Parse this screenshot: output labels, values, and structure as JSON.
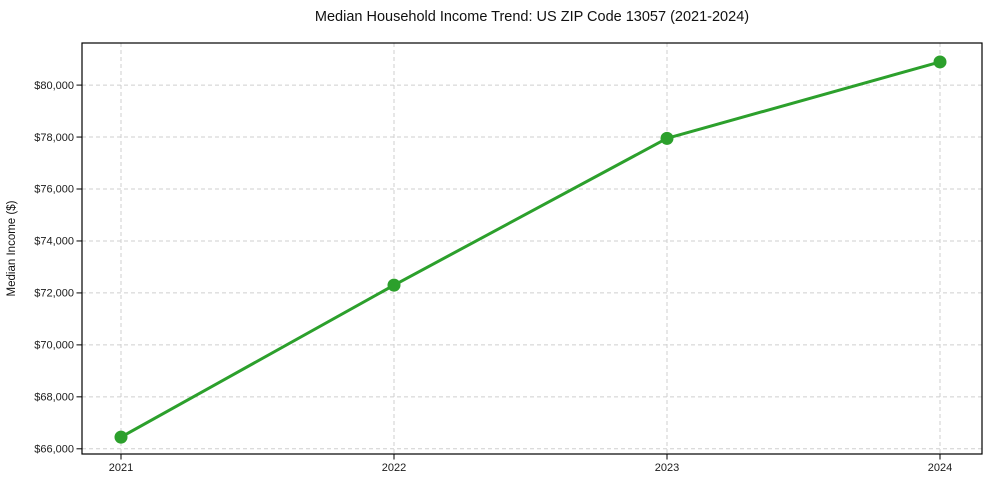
{
  "chart_data": {
    "type": "line",
    "title": "Median Household Income Trend: US ZIP Code 13057 (2021-2024)",
    "xlabel": "",
    "ylabel": "Median Income ($)",
    "x": [
      "2021",
      "2022",
      "2023",
      "2024"
    ],
    "series": [
      {
        "name": "Median Household Income",
        "values": [
          66450,
          72300,
          77950,
          80890
        ]
      }
    ],
    "yticks": [
      66000,
      68000,
      70000,
      72000,
      74000,
      76000,
      78000,
      80000
    ],
    "ytick_labels": [
      "$66,000",
      "$68,000",
      "$70,000",
      "$72,000",
      "$74,000",
      "$76,000",
      "$78,000",
      "$80,000"
    ],
    "ylim": [
      65800,
      81620
    ],
    "grid": true,
    "grid_style": "dashed",
    "legend_position": "none",
    "colors": {
      "line": "#2ca02c",
      "marker": "#2ca02c",
      "grid": "#cfcfcf",
      "axis_frame": "#000000",
      "background": "#ffffff",
      "text": "#1a1a1a"
    }
  }
}
